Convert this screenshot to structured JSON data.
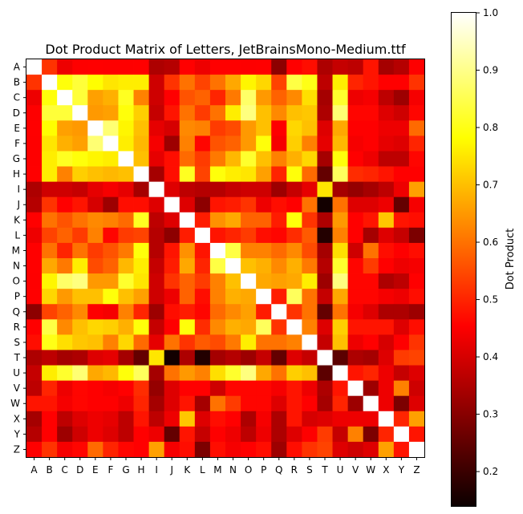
{
  "chart_data": {
    "type": "heatmap",
    "title": "Dot Product Matrix of Letters, JetBrainsMono-Medium.ttf",
    "xlabel": "",
    "ylabel": "",
    "x_categories": [
      "A",
      "B",
      "C",
      "D",
      "E",
      "F",
      "G",
      "H",
      "I",
      "J",
      "K",
      "L",
      "M",
      "N",
      "O",
      "P",
      "Q",
      "R",
      "S",
      "T",
      "U",
      "V",
      "W",
      "X",
      "Y",
      "Z"
    ],
    "y_categories": [
      "A",
      "B",
      "C",
      "D",
      "E",
      "F",
      "G",
      "H",
      "I",
      "J",
      "K",
      "L",
      "M",
      "N",
      "O",
      "P",
      "Q",
      "R",
      "S",
      "T",
      "U",
      "V",
      "W",
      "X",
      "Y",
      "Z"
    ],
    "colormap": "hot",
    "colorbar": {
      "label": "Dot Product",
      "min": 0.14,
      "max": 1.0,
      "ticks": [
        "0.2",
        "0.3",
        "0.4",
        "0.5",
        "0.6",
        "0.7",
        "0.8",
        "0.9",
        "1.0"
      ],
      "tick_values": [
        0.2,
        0.3,
        0.4,
        0.5,
        0.6,
        0.7,
        0.8,
        0.9,
        1.0
      ]
    },
    "values": [
      [
        1.0,
        0.52,
        0.42,
        0.44,
        0.45,
        0.44,
        0.44,
        0.45,
        0.34,
        0.35,
        0.45,
        0.42,
        0.45,
        0.45,
        0.44,
        0.45,
        0.3,
        0.45,
        0.47,
        0.34,
        0.37,
        0.36,
        0.48,
        0.33,
        0.35,
        0.44
      ],
      [
        0.52,
        1.0,
        0.79,
        0.83,
        0.78,
        0.75,
        0.76,
        0.76,
        0.38,
        0.52,
        0.6,
        0.54,
        0.6,
        0.67,
        0.77,
        0.73,
        0.54,
        0.84,
        0.8,
        0.36,
        0.76,
        0.5,
        0.48,
        0.45,
        0.45,
        0.52
      ],
      [
        0.42,
        0.79,
        1.0,
        0.83,
        0.66,
        0.68,
        0.81,
        0.62,
        0.38,
        0.45,
        0.56,
        0.58,
        0.5,
        0.61,
        0.87,
        0.65,
        0.58,
        0.63,
        0.74,
        0.33,
        0.82,
        0.42,
        0.43,
        0.36,
        0.32,
        0.43
      ],
      [
        0.44,
        0.83,
        0.83,
        1.0,
        0.65,
        0.66,
        0.79,
        0.72,
        0.37,
        0.48,
        0.6,
        0.53,
        0.6,
        0.76,
        0.89,
        0.7,
        0.63,
        0.7,
        0.71,
        0.34,
        0.88,
        0.46,
        0.46,
        0.4,
        0.38,
        0.46
      ],
      [
        0.45,
        0.78,
        0.66,
        0.65,
        1.0,
        0.88,
        0.77,
        0.7,
        0.41,
        0.39,
        0.63,
        0.62,
        0.53,
        0.55,
        0.65,
        0.7,
        0.44,
        0.73,
        0.7,
        0.4,
        0.67,
        0.44,
        0.44,
        0.42,
        0.42,
        0.59
      ],
      [
        0.44,
        0.75,
        0.68,
        0.66,
        0.88,
        1.0,
        0.76,
        0.69,
        0.43,
        0.32,
        0.62,
        0.46,
        0.56,
        0.58,
        0.65,
        0.79,
        0.43,
        0.72,
        0.62,
        0.41,
        0.69,
        0.43,
        0.44,
        0.41,
        0.4,
        0.5
      ],
      [
        0.44,
        0.76,
        0.81,
        0.79,
        0.77,
        0.76,
        1.0,
        0.7,
        0.41,
        0.47,
        0.59,
        0.53,
        0.61,
        0.69,
        0.82,
        0.7,
        0.62,
        0.68,
        0.73,
        0.33,
        0.79,
        0.45,
        0.42,
        0.36,
        0.36,
        0.46
      ],
      [
        0.45,
        0.76,
        0.62,
        0.72,
        0.7,
        0.69,
        0.7,
        1.0,
        0.33,
        0.47,
        0.81,
        0.54,
        0.79,
        0.76,
        0.75,
        0.66,
        0.5,
        0.79,
        0.59,
        0.25,
        0.86,
        0.51,
        0.5,
        0.48,
        0.45,
        0.45
      ],
      [
        0.34,
        0.38,
        0.38,
        0.37,
        0.41,
        0.43,
        0.41,
        0.33,
        1.0,
        0.4,
        0.36,
        0.35,
        0.35,
        0.37,
        0.38,
        0.38,
        0.32,
        0.37,
        0.41,
        0.75,
        0.33,
        0.31,
        0.33,
        0.36,
        0.42,
        0.66
      ],
      [
        0.35,
        0.52,
        0.45,
        0.48,
        0.39,
        0.32,
        0.47,
        0.47,
        0.4,
        1.0,
        0.4,
        0.3,
        0.48,
        0.49,
        0.52,
        0.42,
        0.47,
        0.45,
        0.6,
        0.15,
        0.6,
        0.4,
        0.4,
        0.42,
        0.25,
        0.43
      ],
      [
        0.45,
        0.6,
        0.56,
        0.6,
        0.63,
        0.62,
        0.59,
        0.81,
        0.36,
        0.4,
        1.0,
        0.49,
        0.64,
        0.67,
        0.58,
        0.58,
        0.49,
        0.79,
        0.52,
        0.34,
        0.65,
        0.45,
        0.48,
        0.71,
        0.48,
        0.47
      ],
      [
        0.42,
        0.54,
        0.58,
        0.53,
        0.62,
        0.46,
        0.53,
        0.54,
        0.35,
        0.3,
        0.49,
        1.0,
        0.48,
        0.5,
        0.53,
        0.47,
        0.46,
        0.51,
        0.57,
        0.17,
        0.62,
        0.45,
        0.33,
        0.4,
        0.37,
        0.28
      ],
      [
        0.45,
        0.6,
        0.5,
        0.6,
        0.53,
        0.56,
        0.61,
        0.79,
        0.35,
        0.48,
        0.64,
        0.48,
        1.0,
        0.84,
        0.62,
        0.62,
        0.59,
        0.63,
        0.55,
        0.33,
        0.74,
        0.38,
        0.6,
        0.47,
        0.44,
        0.47
      ],
      [
        0.45,
        0.67,
        0.61,
        0.76,
        0.55,
        0.58,
        0.69,
        0.76,
        0.37,
        0.49,
        0.67,
        0.5,
        0.84,
        1.0,
        0.7,
        0.68,
        0.63,
        0.68,
        0.61,
        0.35,
        0.82,
        0.46,
        0.53,
        0.45,
        0.42,
        0.43
      ],
      [
        0.44,
        0.77,
        0.87,
        0.89,
        0.65,
        0.65,
        0.82,
        0.75,
        0.38,
        0.52,
        0.58,
        0.53,
        0.62,
        0.7,
        1.0,
        0.67,
        0.66,
        0.67,
        0.76,
        0.32,
        0.89,
        0.46,
        0.46,
        0.34,
        0.36,
        0.45
      ],
      [
        0.45,
        0.73,
        0.65,
        0.7,
        0.7,
        0.79,
        0.7,
        0.66,
        0.38,
        0.42,
        0.58,
        0.47,
        0.62,
        0.68,
        0.67,
        1.0,
        0.49,
        0.86,
        0.6,
        0.37,
        0.67,
        0.46,
        0.46,
        0.43,
        0.42,
        0.47
      ],
      [
        0.3,
        0.54,
        0.58,
        0.63,
        0.44,
        0.43,
        0.62,
        0.5,
        0.32,
        0.47,
        0.49,
        0.46,
        0.59,
        0.63,
        0.66,
        0.49,
        1.0,
        0.52,
        0.6,
        0.25,
        0.6,
        0.43,
        0.4,
        0.34,
        0.34,
        0.32
      ],
      [
        0.45,
        0.84,
        0.63,
        0.7,
        0.73,
        0.72,
        0.68,
        0.79,
        0.37,
        0.45,
        0.79,
        0.51,
        0.63,
        0.68,
        0.67,
        0.86,
        0.52,
        1.0,
        0.62,
        0.4,
        0.72,
        0.48,
        0.48,
        0.48,
        0.4,
        0.47
      ],
      [
        0.47,
        0.8,
        0.74,
        0.71,
        0.7,
        0.62,
        0.73,
        0.59,
        0.41,
        0.6,
        0.52,
        0.57,
        0.55,
        0.61,
        0.76,
        0.6,
        0.6,
        0.62,
        1.0,
        0.37,
        0.7,
        0.42,
        0.45,
        0.39,
        0.44,
        0.52
      ],
      [
        0.34,
        0.36,
        0.33,
        0.34,
        0.4,
        0.41,
        0.33,
        0.25,
        0.75,
        0.15,
        0.34,
        0.17,
        0.33,
        0.35,
        0.32,
        0.37,
        0.25,
        0.4,
        0.37,
        1.0,
        0.24,
        0.34,
        0.33,
        0.4,
        0.53,
        0.54
      ],
      [
        0.37,
        0.76,
        0.82,
        0.88,
        0.67,
        0.69,
        0.79,
        0.86,
        0.33,
        0.6,
        0.65,
        0.62,
        0.74,
        0.82,
        0.89,
        0.67,
        0.6,
        0.72,
        0.7,
        0.24,
        1.0,
        0.48,
        0.5,
        0.42,
        0.37,
        0.4
      ],
      [
        0.36,
        0.5,
        0.42,
        0.46,
        0.44,
        0.43,
        0.45,
        0.51,
        0.31,
        0.4,
        0.45,
        0.45,
        0.38,
        0.46,
        0.46,
        0.46,
        0.43,
        0.48,
        0.42,
        0.34,
        0.48,
        1.0,
        0.32,
        0.42,
        0.62,
        0.38
      ],
      [
        0.48,
        0.48,
        0.43,
        0.46,
        0.44,
        0.44,
        0.42,
        0.5,
        0.33,
        0.4,
        0.48,
        0.33,
        0.6,
        0.53,
        0.46,
        0.46,
        0.4,
        0.48,
        0.45,
        0.33,
        0.5,
        0.32,
        1.0,
        0.42,
        0.28,
        0.4
      ],
      [
        0.33,
        0.45,
        0.36,
        0.4,
        0.42,
        0.41,
        0.36,
        0.48,
        0.36,
        0.42,
        0.71,
        0.4,
        0.47,
        0.45,
        0.34,
        0.43,
        0.34,
        0.48,
        0.39,
        0.4,
        0.42,
        0.42,
        0.42,
        1.0,
        0.5,
        0.66
      ],
      [
        0.35,
        0.45,
        0.32,
        0.38,
        0.42,
        0.4,
        0.36,
        0.45,
        0.42,
        0.25,
        0.48,
        0.37,
        0.44,
        0.42,
        0.36,
        0.42,
        0.34,
        0.4,
        0.44,
        0.53,
        0.37,
        0.62,
        0.28,
        0.5,
        1.0,
        0.48
      ],
      [
        0.44,
        0.52,
        0.43,
        0.46,
        0.59,
        0.5,
        0.46,
        0.45,
        0.66,
        0.43,
        0.47,
        0.28,
        0.47,
        0.43,
        0.45,
        0.47,
        0.32,
        0.47,
        0.52,
        0.54,
        0.4,
        0.38,
        0.4,
        0.66,
        0.48,
        1.0
      ]
    ]
  }
}
